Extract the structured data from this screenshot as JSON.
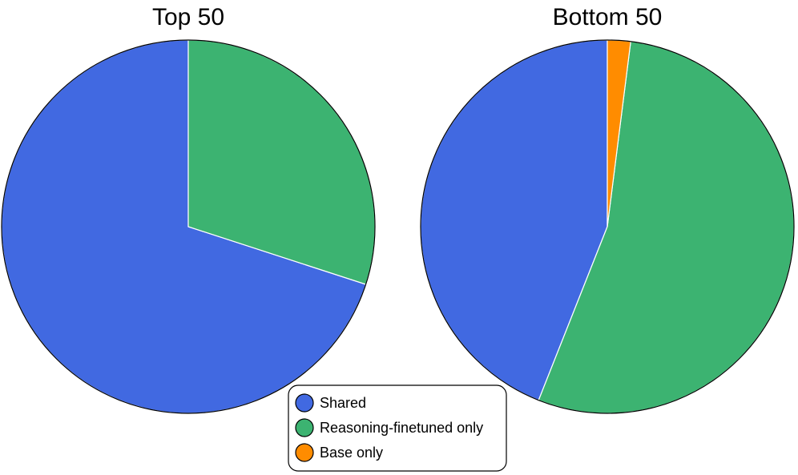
{
  "chart_data": [
    {
      "type": "pie",
      "title": "Top 50",
      "categories": [
        "Shared",
        "Reasoning-finetuned only",
        "Base only"
      ],
      "values": [
        35,
        15,
        0
      ],
      "colors": [
        "#4169e1",
        "#3cb371",
        "#ff8c00"
      ]
    },
    {
      "type": "pie",
      "title": "Bottom 50",
      "categories": [
        "Shared",
        "Reasoning-finetuned only",
        "Base only"
      ],
      "values": [
        22,
        27,
        1
      ],
      "colors": [
        "#4169e1",
        "#3cb371",
        "#ff8c00"
      ]
    }
  ]
}
